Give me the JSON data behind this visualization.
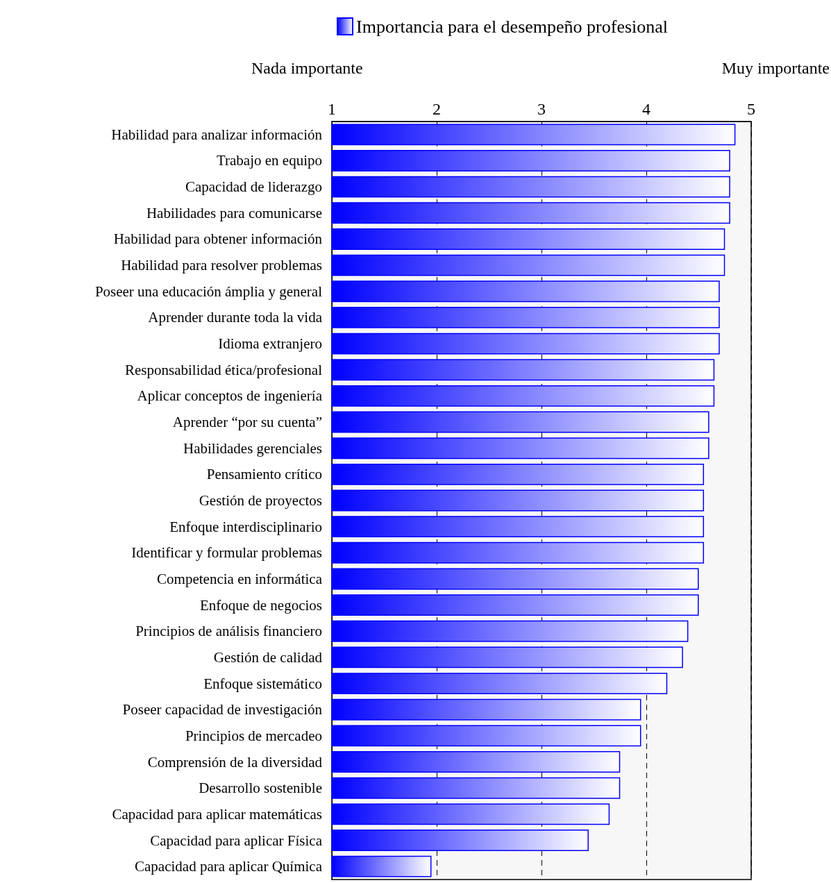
{
  "chart_data": {
    "type": "bar",
    "orientation": "horizontal",
    "legend": "top",
    "grid": "x",
    "categories": [
      "Habilidad para analizar información",
      "Trabajo en equipo",
      "Capacidad de liderazgo",
      "Habilidades para comunicarse",
      "Habilidad para obtener información",
      "Habilidad para resolver problemas",
      "Poseer una educación ámplia y general",
      "Aprender durante toda la vida",
      "Idioma extranjero",
      "Responsabilidad ética/profesional",
      "Aplicar conceptos de ingeniería",
      "Aprender “por su cuenta”",
      "Habilidades gerenciales",
      "Pensamiento crítico",
      "Gestión de proyectos",
      "Enfoque interdisciplinario",
      "Identificar y formular problemas",
      "Competencia en informática",
      "Enfoque de negocios",
      "Principios de análisis financiero",
      "Gestión de calidad",
      "Enfoque sistemático",
      "Poseer capacidad de investigación",
      "Principios de mercadeo",
      "Comprensión de la diversidad",
      "Desarrollo sostenible",
      "Capacidad para aplicar matemáticas",
      "Capacidad para aplicar Física",
      "Capacidad para aplicar Química"
    ],
    "series": [
      {
        "name": "Importancia para el desempeño profesional",
        "color": "#0000ff",
        "values": [
          4.85,
          4.8,
          4.8,
          4.8,
          4.75,
          4.75,
          4.7,
          4.7,
          4.7,
          4.65,
          4.65,
          4.6,
          4.6,
          4.55,
          4.55,
          4.55,
          4.55,
          4.5,
          4.5,
          4.4,
          4.35,
          4.2,
          3.95,
          3.95,
          3.75,
          3.75,
          3.65,
          3.45,
          1.95
        ]
      }
    ],
    "xlim": [
      1,
      5
    ],
    "xticks": [
      1,
      2,
      3,
      4,
      5
    ],
    "annotations": [
      "Nada importante",
      "Muy importante"
    ]
  }
}
